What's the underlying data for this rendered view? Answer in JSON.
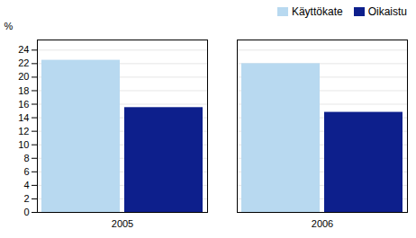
{
  "chart_data": {
    "type": "bar",
    "categories": [
      "2005",
      "2006"
    ],
    "series": [
      {
        "name": "Käyttökate",
        "color": "#b8d9f0",
        "values": [
          22.5,
          22.0
        ]
      },
      {
        "name": "Oikaistu",
        "color": "#0d1f8c",
        "values": [
          15.5,
          14.8
        ]
      }
    ],
    "ylabel": "%",
    "ylim": [
      0,
      25.5
    ],
    "yticks": [
      0,
      2,
      4,
      6,
      8,
      10,
      12,
      14,
      16,
      18,
      20,
      22,
      24
    ],
    "grid": true,
    "legend": "upper right"
  }
}
